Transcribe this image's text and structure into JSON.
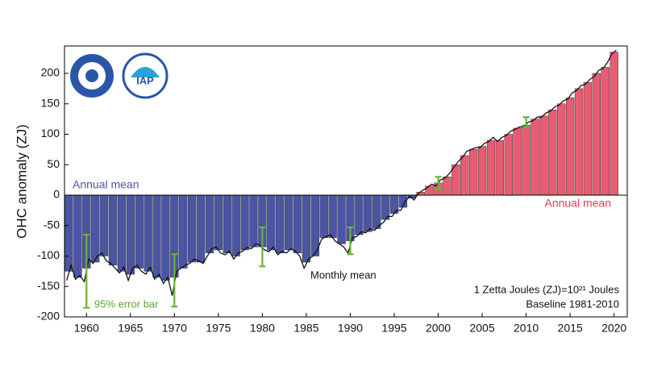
{
  "chart_data": {
    "type": "bar_line",
    "y_label": "OHC anomaly (ZJ)",
    "negative_color": "#4b55a3",
    "positive_color": "#e85c72",
    "line_color": "#111111",
    "error_color": "#6ab23a",
    "xlim": [
      1957.5,
      2021.5
    ],
    "ylim": [
      -200,
      245
    ],
    "xticks": [
      1960,
      1965,
      1970,
      1975,
      1980,
      1985,
      1990,
      1995,
      2000,
      2005,
      2010,
      2015,
      2020
    ],
    "yticks": [
      -200,
      -150,
      -100,
      -50,
      0,
      50,
      100,
      150,
      200
    ],
    "annual": {
      "x": [
        1958,
        1959,
        1960,
        1961,
        1962,
        1963,
        1964,
        1965,
        1966,
        1967,
        1968,
        1969,
        1970,
        1971,
        1972,
        1973,
        1974,
        1975,
        1976,
        1977,
        1978,
        1979,
        1980,
        1981,
        1982,
        1983,
        1984,
        1985,
        1986,
        1987,
        1988,
        1989,
        1990,
        1991,
        1992,
        1993,
        1994,
        1995,
        1996,
        1997,
        1998,
        1999,
        2000,
        2001,
        2002,
        2003,
        2004,
        2005,
        2006,
        2007,
        2008,
        2009,
        2010,
        2011,
        2012,
        2013,
        2014,
        2015,
        2016,
        2017,
        2018,
        2019,
        2020
      ],
      "values": [
        -125,
        -135,
        -120,
        -110,
        -100,
        -115,
        -125,
        -130,
        -120,
        -125,
        -135,
        -140,
        -135,
        -120,
        -110,
        -110,
        -95,
        -90,
        -95,
        -100,
        -90,
        -85,
        -85,
        -90,
        -95,
        -90,
        -95,
        -110,
        -100,
        -70,
        -70,
        -80,
        -75,
        -65,
        -60,
        -55,
        -40,
        -30,
        -20,
        -5,
        5,
        15,
        20,
        30,
        50,
        65,
        75,
        80,
        90,
        90,
        100,
        110,
        115,
        125,
        130,
        140,
        150,
        160,
        175,
        185,
        200,
        210,
        235
      ]
    },
    "monthly": {
      "x": [
        1957.75,
        1958.25,
        1958.75,
        1959.25,
        1959.75,
        1960.25,
        1960.75,
        1961.25,
        1961.75,
        1962.25,
        1962.75,
        1963.25,
        1963.75,
        1964.25,
        1964.75,
        1965.25,
        1965.75,
        1966.25,
        1966.75,
        1967.25,
        1967.75,
        1968.25,
        1968.75,
        1969.25,
        1969.75,
        1970.25,
        1970.75,
        1971.25,
        1971.75,
        1972.25,
        1972.75,
        1973.25,
        1973.75,
        1974.25,
        1974.75,
        1975.25,
        1975.75,
        1976.25,
        1976.75,
        1977.25,
        1977.75,
        1978.25,
        1978.75,
        1979.25,
        1979.75,
        1980.25,
        1980.75,
        1981.25,
        1981.75,
        1982.25,
        1982.75,
        1983.25,
        1983.75,
        1984.25,
        1984.75,
        1985.25,
        1985.75,
        1986.25,
        1986.75,
        1987.25,
        1987.75,
        1988.25,
        1988.75,
        1989.25,
        1989.75,
        1990.25,
        1990.75,
        1991.25,
        1991.75,
        1992.25,
        1992.75,
        1993.25,
        1993.75,
        1994.25,
        1994.75,
        1995.25,
        1995.75,
        1996.25,
        1996.75,
        1997.25,
        1997.75,
        1998.25,
        1998.75,
        1999.25,
        1999.75,
        2000.25,
        2000.75,
        2001.25,
        2001.75,
        2002.25,
        2002.75,
        2003.25,
        2003.75,
        2004.25,
        2004.75,
        2005.25,
        2005.75,
        2006.25,
        2006.75,
        2007.25,
        2007.75,
        2008.25,
        2008.75,
        2009.25,
        2009.75,
        2010.25,
        2010.75,
        2011.25,
        2011.75,
        2012.25,
        2012.75,
        2013.25,
        2013.75,
        2014.25,
        2014.75,
        2015.25,
        2015.75,
        2016.25,
        2016.75,
        2017.25,
        2017.75,
        2018.25,
        2018.75,
        2019.25,
        2019.75,
        2020.25
      ],
      "values": [
        -140,
        -115,
        -138,
        -132,
        -142,
        -105,
        -112,
        -100,
        -95,
        -108,
        -112,
        -120,
        -128,
        -118,
        -140,
        -120,
        -115,
        -125,
        -130,
        -118,
        -138,
        -130,
        -145,
        -135,
        -165,
        -125,
        -120,
        -115,
        -112,
        -105,
        -108,
        -112,
        -100,
        -88,
        -85,
        -95,
        -98,
        -92,
        -105,
        -95,
        -92,
        -86,
        -88,
        -80,
        -82,
        -90,
        -93,
        -85,
        -98,
        -92,
        -95,
        -88,
        -92,
        -100,
        -120,
        -105,
        -100,
        -90,
        -72,
        -68,
        -65,
        -75,
        -80,
        -85,
        -95,
        -70,
        -68,
        -60,
        -62,
        -55,
        -58,
        -50,
        -45,
        -35,
        -35,
        -25,
        -25,
        -10,
        -2,
        -8,
        3,
        8,
        12,
        18,
        15,
        25,
        28,
        35,
        45,
        55,
        62,
        72,
        75,
        78,
        78,
        85,
        88,
        95,
        88,
        95,
        98,
        105,
        108,
        112,
        112,
        120,
        122,
        128,
        128,
        135,
        138,
        145,
        148,
        155,
        158,
        168,
        172,
        180,
        182,
        190,
        195,
        205,
        208,
        218,
        232,
        238
      ]
    },
    "error_bars": {
      "x": [
        1960,
        1970,
        1980,
        1990,
        2000,
        2010
      ],
      "values": [
        -125,
        -140,
        -85,
        -75,
        20,
        120
      ],
      "errors": [
        60,
        43,
        32,
        22,
        10,
        8
      ]
    },
    "annotations": [
      "Annual mean",
      "Annual mean",
      "Monthly mean",
      "95% error bar",
      "1 Zetta Joules (ZJ)=10²¹ Joules",
      "Baseline 1981-2010"
    ]
  }
}
